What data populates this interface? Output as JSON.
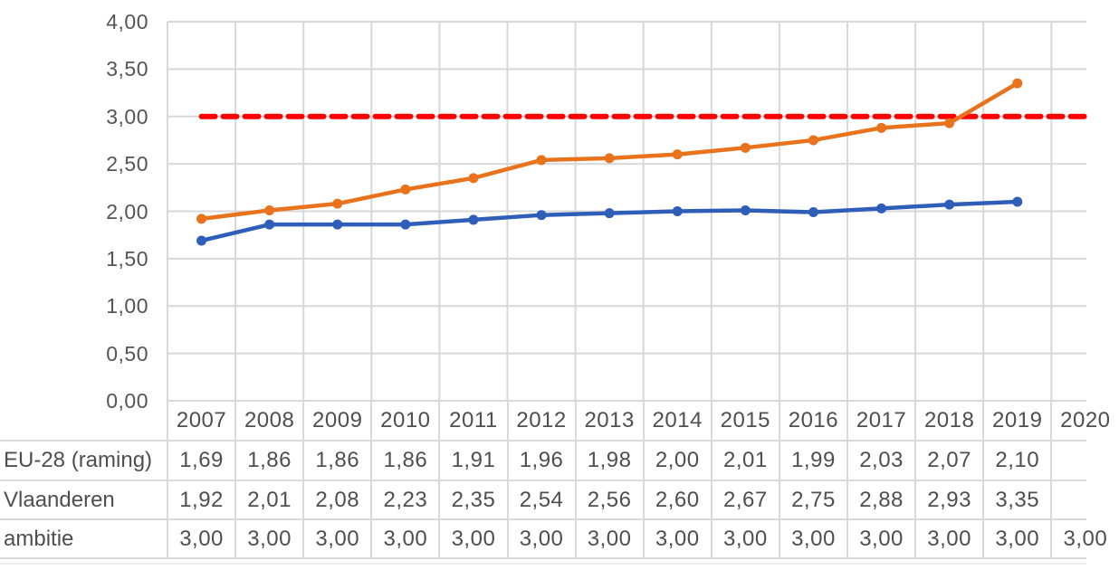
{
  "chart_data": {
    "type": "line",
    "title": "",
    "xlabel": "",
    "ylabel": "",
    "ylim": [
      0,
      4
    ],
    "y_tick_step": 0.5,
    "y_tick_labels": [
      "4,00",
      "3,50",
      "3,00",
      "2,50",
      "2,00",
      "1,50",
      "1,00",
      "0,50",
      "0,00"
    ],
    "grid": true,
    "legend_position": "data-table-left-column",
    "decimal_separator": ",",
    "categories": [
      "2007",
      "2008",
      "2009",
      "2010",
      "2011",
      "2012",
      "2013",
      "2014",
      "2015",
      "2016",
      "2017",
      "2018",
      "2019",
      "2020"
    ],
    "series": [
      {
        "name": "EU-28 (raming)",
        "color": "#2e5eb8",
        "style": "solid",
        "markers": "circle",
        "values": [
          1.69,
          1.86,
          1.86,
          1.86,
          1.91,
          1.96,
          1.98,
          2.0,
          2.01,
          1.99,
          2.03,
          2.07,
          2.1,
          null
        ],
        "display": [
          "1,69",
          "1,86",
          "1,86",
          "1,86",
          "1,91",
          "1,96",
          "1,98",
          "2,00",
          "2,01",
          "1,99",
          "2,03",
          "2,07",
          "2,10",
          ""
        ]
      },
      {
        "name": "Vlaanderen",
        "color": "#e9731d",
        "style": "solid",
        "markers": "circle",
        "values": [
          1.92,
          2.01,
          2.08,
          2.23,
          2.35,
          2.54,
          2.56,
          2.6,
          2.67,
          2.75,
          2.88,
          2.93,
          3.35,
          null
        ],
        "display": [
          "1,92",
          "2,01",
          "2,08",
          "2,23",
          "2,35",
          "2,54",
          "2,56",
          "2,60",
          "2,67",
          "2,75",
          "2,88",
          "2,93",
          "3,35",
          ""
        ]
      },
      {
        "name": "ambitie",
        "color": "#fe0000",
        "style": "dashed",
        "markers": "none",
        "values": [
          3.0,
          3.0,
          3.0,
          3.0,
          3.0,
          3.0,
          3.0,
          3.0,
          3.0,
          3.0,
          3.0,
          3.0,
          3.0,
          3.0
        ],
        "display": [
          "3,00",
          "3,00",
          "3,00",
          "3,00",
          "3,00",
          "3,00",
          "3,00",
          "3,00",
          "3,00",
          "3,00",
          "3,00",
          "3,00",
          "3,00",
          "3,00"
        ]
      }
    ],
    "colors": {
      "gridline": "#d8d8d8",
      "table_border": "#d9d9d9",
      "axis_text": "#555555",
      "table_text": "#4f4f4f"
    }
  }
}
